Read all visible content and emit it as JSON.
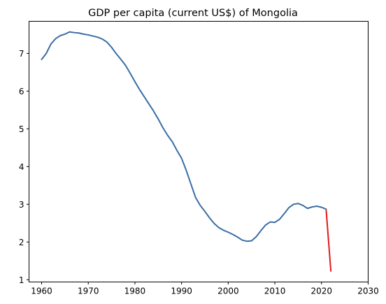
{
  "chart_data": {
    "type": "line",
    "title": "GDP per capita (current US$) of Mongolia",
    "xlabel": "",
    "ylabel": "",
    "xlim": [
      1957.3,
      2030
    ],
    "ylim": [
      0.94,
      7.85
    ],
    "xticks": [
      1960,
      1970,
      1980,
      1990,
      2000,
      2010,
      2020,
      2030
    ],
    "yticks": [
      1,
      2,
      3,
      4,
      5,
      6,
      7
    ],
    "grid": false,
    "series": [
      {
        "color": "#3a6ea5",
        "points": [
          [
            1960,
            6.84
          ],
          [
            1961,
            7.0
          ],
          [
            1962,
            7.25
          ],
          [
            1963,
            7.39
          ],
          [
            1964,
            7.47
          ],
          [
            1965,
            7.51
          ],
          [
            1966,
            7.57
          ],
          [
            1967,
            7.55
          ],
          [
            1968,
            7.54
          ],
          [
            1969,
            7.51
          ],
          [
            1970,
            7.49
          ],
          [
            1971,
            7.46
          ],
          [
            1972,
            7.43
          ],
          [
            1973,
            7.38
          ],
          [
            1974,
            7.3
          ],
          [
            1975,
            7.16
          ],
          [
            1976,
            6.99
          ],
          [
            1977,
            6.84
          ],
          [
            1978,
            6.68
          ],
          [
            1979,
            6.47
          ],
          [
            1980,
            6.25
          ],
          [
            1981,
            6.04
          ],
          [
            1982,
            5.85
          ],
          [
            1983,
            5.66
          ],
          [
            1984,
            5.47
          ],
          [
            1985,
            5.26
          ],
          [
            1986,
            5.03
          ],
          [
            1987,
            4.83
          ],
          [
            1988,
            4.66
          ],
          [
            1989,
            4.43
          ],
          [
            1990,
            4.22
          ],
          [
            1991,
            3.9
          ],
          [
            1992,
            3.54
          ],
          [
            1993,
            3.18
          ],
          [
            1994,
            2.97
          ],
          [
            1995,
            2.81
          ],
          [
            1996,
            2.64
          ],
          [
            1997,
            2.49
          ],
          [
            1998,
            2.38
          ],
          [
            1999,
            2.31
          ],
          [
            2000,
            2.26
          ],
          [
            2001,
            2.2
          ],
          [
            2002,
            2.13
          ],
          [
            2003,
            2.05
          ],
          [
            2004,
            2.02
          ],
          [
            2005,
            2.03
          ],
          [
            2006,
            2.14
          ],
          [
            2007,
            2.3
          ],
          [
            2008,
            2.45
          ],
          [
            2009,
            2.53
          ],
          [
            2010,
            2.52
          ],
          [
            2011,
            2.6
          ],
          [
            2012,
            2.75
          ],
          [
            2013,
            2.91
          ],
          [
            2014,
            3.0
          ],
          [
            2015,
            3.02
          ],
          [
            2016,
            2.97
          ],
          [
            2017,
            2.89
          ],
          [
            2018,
            2.93
          ],
          [
            2019,
            2.95
          ],
          [
            2020,
            2.92
          ],
          [
            2021,
            2.87
          ]
        ]
      },
      {
        "color": "#e31a1c",
        "points": [
          [
            2021,
            2.84
          ],
          [
            2022,
            1.23
          ]
        ]
      }
    ]
  }
}
